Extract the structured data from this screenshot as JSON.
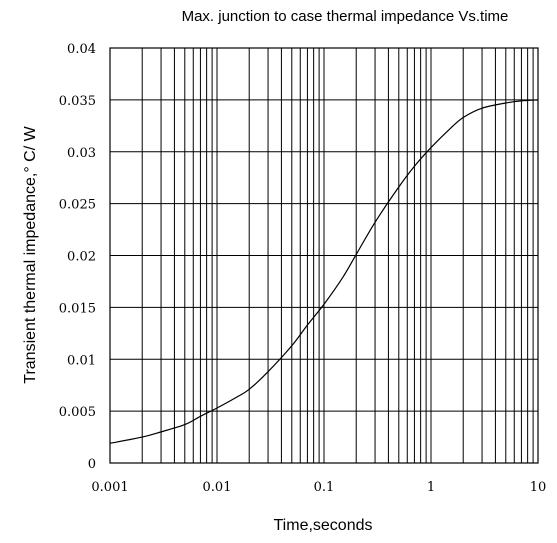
{
  "chart_data": {
    "type": "line",
    "title": "Max. junction to case thermal impedance Vs.time",
    "xlabel": "Time,seconds",
    "ylabel": "Transient thermal impedance,° C/ W",
    "xscale": "log",
    "xlim": [
      0.001,
      10
    ],
    "ylim": [
      0,
      0.04
    ],
    "grid": true,
    "x_tick_labels": [
      "0.001",
      "0.01",
      "0.1",
      "1",
      "10"
    ],
    "y_tick_labels": [
      "0",
      "0.005",
      "0.01",
      "0.015",
      "0.02",
      "0.025",
      "0.03",
      "0.035",
      "0.04"
    ],
    "series": [
      {
        "x": [
          0.001,
          0.002,
          0.003,
          0.005,
          0.007,
          0.01,
          0.015,
          0.02,
          0.03,
          0.05,
          0.07,
          0.1,
          0.15,
          0.2,
          0.3,
          0.5,
          0.7,
          1,
          1.5,
          2,
          3,
          5,
          7,
          10
        ],
        "values": [
          0.0019,
          0.0025,
          0.003,
          0.0037,
          0.0045,
          0.0053,
          0.0063,
          0.0071,
          0.0088,
          0.0113,
          0.0133,
          0.0153,
          0.0179,
          0.0201,
          0.0232,
          0.0266,
          0.0286,
          0.0304,
          0.0322,
          0.0333,
          0.0342,
          0.0347,
          0.0349,
          0.035
        ]
      }
    ]
  }
}
